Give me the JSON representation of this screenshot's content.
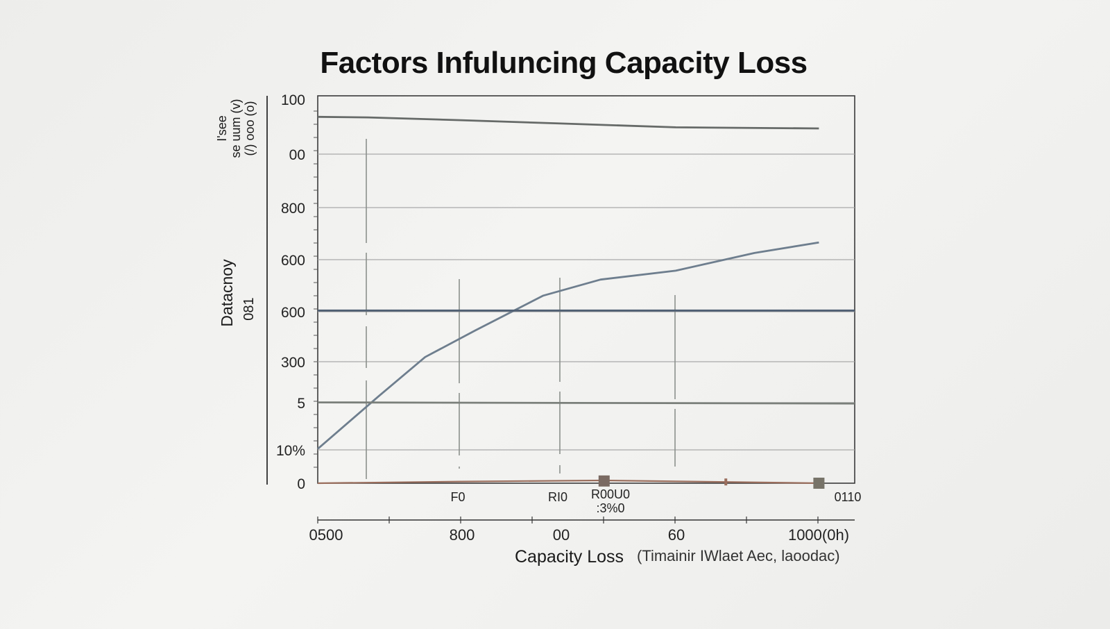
{
  "chart_data": {
    "type": "line",
    "title": "Factors Infuluncing Capacity Loss",
    "xlabel_main": "Capacity Loss",
    "xlabel_paren": "(Timainir IWlaet Aec, laoodac)",
    "ylabel_main": "Datacnoy",
    "ylabel_sub": "081",
    "ylabel_top": [
      "I'see",
      "se uum (v)",
      "(/) ooo (o)"
    ],
    "y_tick_labels": [
      "100",
      "00",
      "800",
      "600",
      "600",
      "300",
      "5",
      "10%",
      "0"
    ],
    "x_tick_labels": [
      "0500",
      "800",
      "00",
      "60",
      "1000(0h)"
    ],
    "x_upper_labels": [
      "F0",
      "RI0",
      "R00U0\n:3%0",
      "0110"
    ],
    "x": [
      0,
      100,
      200,
      300,
      400,
      500,
      600,
      700
    ],
    "ylim": [
      0,
      700
    ],
    "xlim": [
      0,
      750
    ],
    "grid": true,
    "series": [
      {
        "color": "#666a68",
        "values": [
          [
            0,
            662
          ],
          [
            70,
            661
          ],
          [
            200,
            656
          ],
          [
            340,
            650
          ],
          [
            500,
            643
          ],
          [
            700,
            641
          ]
        ]
      },
      {
        "color": "#6e7e8e",
        "values": [
          [
            0,
            62
          ],
          [
            85,
            157
          ],
          [
            150,
            228
          ],
          [
            220,
            276
          ],
          [
            315,
            339
          ],
          [
            395,
            368
          ],
          [
            500,
            384
          ],
          [
            610,
            416
          ],
          [
            700,
            435
          ]
        ]
      },
      {
        "color": "#4f5f73",
        "values": [
          [
            0,
            312
          ],
          [
            750,
            312
          ]
        ]
      },
      {
        "color": "#7a7f7a",
        "values": [
          [
            0,
            146
          ],
          [
            750,
            144
          ]
        ]
      },
      {
        "color": "#9a6e5d",
        "values": [
          [
            0,
            0
          ],
          [
            200,
            3
          ],
          [
            400,
            5
          ],
          [
            580,
            2
          ],
          [
            700,
            0
          ]
        ]
      }
    ],
    "markers": [
      {
        "x": 400,
        "y": 4,
        "color": "#7a6a62"
      },
      {
        "x": 700,
        "y": 0,
        "color": "#777368"
      }
    ],
    "marker_ticks": [
      {
        "x": 570,
        "y": 1,
        "color": "#9a6e5d"
      }
    ]
  }
}
